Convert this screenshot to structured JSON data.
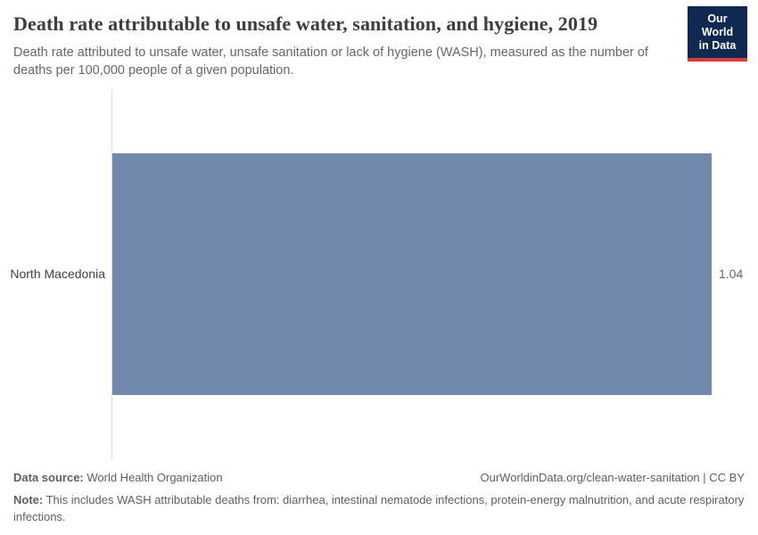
{
  "header": {
    "title": "Death rate attributable to unsafe water, sanitation, and hygiene, 2019",
    "subtitle": "Death rate attributed to unsafe water, unsafe sanitation or lack of hygiene (WASH), measured as the number of deaths per 100,000 people of a given population.",
    "logo": {
      "line1": "Our World",
      "line2": "in Data"
    }
  },
  "chart_data": {
    "type": "bar",
    "orientation": "horizontal",
    "title": "Death rate attributable to unsafe water, sanitation, and hygiene, 2019",
    "categories": [
      "North Macedonia"
    ],
    "values": [
      1.04
    ],
    "value_labels": [
      "1.04"
    ],
    "xlabel": "",
    "ylabel": "",
    "xlim": [
      0,
      1.04
    ],
    "grid": false,
    "legend": "none",
    "bar_color": "#7189ad"
  },
  "footer": {
    "data_source_label": "Data source:",
    "data_source_value": " World Health Organization",
    "attribution": "OurWorldinData.org/clean-water-sanitation | CC BY",
    "note_label": "Note:",
    "note_text": " This includes WASH attributable deaths from: diarrhea, intestinal nematode infections, protein-energy malnutrition, and acute respiratory infections."
  },
  "colors": {
    "bar": "#7189ad",
    "axis_line": "#dcdcdc",
    "logo_background": "#0e2a52",
    "logo_red": "#dc3a34",
    "title_text": "#3d3d3d",
    "subtitle_text": "#666666",
    "footer_text": "#5e5e5e"
  }
}
